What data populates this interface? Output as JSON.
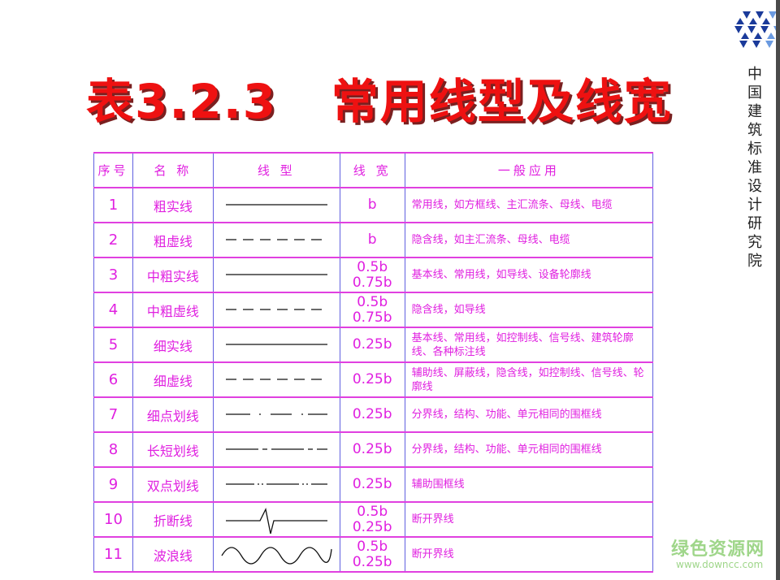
{
  "title": "表3.2.3   常用线型及线宽",
  "organization": "中国建筑标准设计研究院",
  "watermark": {
    "name": "绿色资源网",
    "url": "www.downcc.com"
  },
  "colors": {
    "title": "#ee1111",
    "table_text": "#e020e0",
    "grid_vertical": "#6060e0",
    "grid_horizontal": "#e040e0"
  },
  "table": {
    "headers": [
      "序号",
      "名 称",
      "线  型",
      "线 宽",
      "一般应用"
    ],
    "rows": [
      {
        "no": "1",
        "name": "粗实线",
        "line_type": "solid",
        "width": "b",
        "app": "常用线，如方框线、主汇流条、母线、电缆"
      },
      {
        "no": "2",
        "name": "粗虚线",
        "line_type": "dashed",
        "width": "b",
        "app": "隐含线，如主汇流条、母线、电缆"
      },
      {
        "no": "3",
        "name": "中粗实线",
        "line_type": "solid",
        "width": "0.5b\n0.75b",
        "app": "基本线、常用线，如导线、设备轮廓线"
      },
      {
        "no": "4",
        "name": "中粗虚线",
        "line_type": "dashed",
        "width": "0.5b\n0.75b",
        "app": "隐含线，如导线"
      },
      {
        "no": "5",
        "name": "细实线",
        "line_type": "solid",
        "width": "0.25b",
        "app": "基本线、常用线，如控制线、信号线、建筑轮廓线、各种标注线"
      },
      {
        "no": "6",
        "name": "细虚线",
        "line_type": "dashed",
        "width": "0.25b",
        "app": "辅助线、屏蔽线，隐含线，如控制线、信号线、轮廓线"
      },
      {
        "no": "7",
        "name": "细点划线",
        "line_type": "dash-dot",
        "width": "0.25b",
        "app": "分界线，结构、功能、单元相同的围框线"
      },
      {
        "no": "8",
        "name": "长短划线",
        "line_type": "long-short-dash",
        "width": "0.25b",
        "app": "分界线，结构、功能、单元相同的围框线"
      },
      {
        "no": "9",
        "name": "双点划线",
        "line_type": "dash-double-dot",
        "width": "0.25b",
        "app": "辅助围框线"
      },
      {
        "no": "10",
        "name": "折断线",
        "line_type": "break",
        "width": "0.5b\n0.25b",
        "app": "断开界线"
      },
      {
        "no": "11",
        "name": "波浪线",
        "line_type": "wave",
        "width": "0.5b\n0.25b",
        "app": "断开界线"
      }
    ]
  }
}
